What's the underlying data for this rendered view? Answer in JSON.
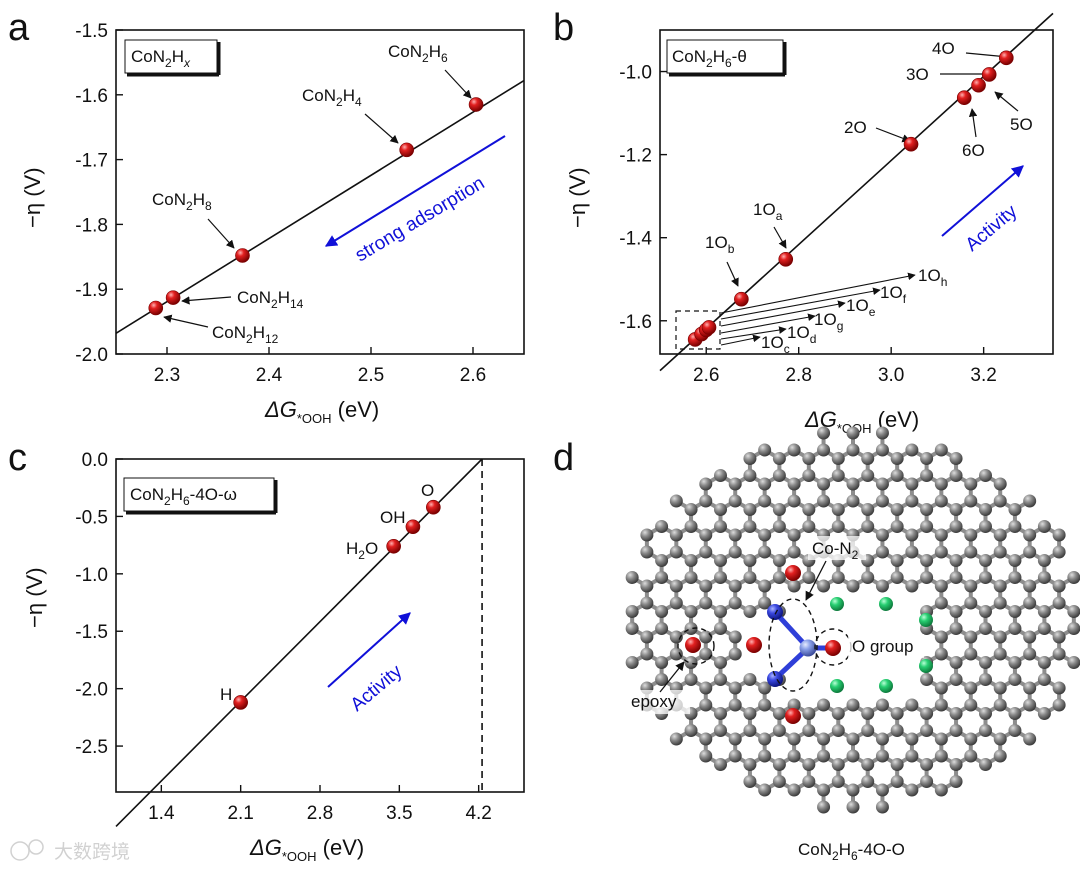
{
  "panel_letters": [
    "a",
    "b",
    "c",
    "d"
  ],
  "chart_data": [
    {
      "panel": "a",
      "type": "scatter",
      "legend": {
        "base": "CoN",
        "s1": "2",
        "mid": "H",
        "s2": "x"
      },
      "xlabel": {
        "pre": "ΔG",
        "sub": "*OOH",
        "post": " (eV)"
      },
      "ylabel": "−η (V)",
      "xlim": [
        2.25,
        2.65
      ],
      "ylim": [
        -2.0,
        -1.5
      ],
      "xticks": [
        "2.3",
        "2.4",
        "2.5",
        "2.6"
      ],
      "yticks": [
        "-1.5",
        "-1.6",
        "-1.7",
        "-1.8",
        "-1.9",
        "-2.0"
      ],
      "points": [
        {
          "x": 2.289,
          "y": -1.929,
          "label": {
            "base": "CoN",
            "s1": "2",
            "mid": "H",
            "s2": "12"
          }
        },
        {
          "x": 2.306,
          "y": -1.913,
          "label": {
            "base": "CoN",
            "s1": "2",
            "mid": "H",
            "s2": "14"
          }
        },
        {
          "x": 2.374,
          "y": -1.848,
          "label": {
            "base": "CoN",
            "s1": "2",
            "mid": "H",
            "s2": "8"
          }
        },
        {
          "x": 2.535,
          "y": -1.685,
          "label": {
            "base": "CoN",
            "s1": "2",
            "mid": "H",
            "s2": "4"
          }
        },
        {
          "x": 2.603,
          "y": -1.615,
          "label": {
            "base": "CoN",
            "s1": "2",
            "mid": "H",
            "s2": "6"
          }
        }
      ],
      "fit_line": [
        [
          2.25,
          -1.968
        ],
        [
          2.65,
          -1.578
        ]
      ],
      "annotation": "strong adsorption"
    },
    {
      "panel": "b",
      "type": "scatter",
      "legend": {
        "base": "CoN",
        "s1": "2",
        "mid": "H",
        "s2": "6",
        "post": "-θ"
      },
      "xlabel": {
        "pre": "ΔG",
        "sub": "*OOH",
        "post": " (eV)"
      },
      "ylabel": "−η (V)",
      "xlim": [
        2.5,
        3.35
      ],
      "ylim": [
        -1.68,
        -0.9
      ],
      "xticks": [
        "2.6",
        "2.8",
        "3.0",
        "3.2"
      ],
      "yticks": [
        "-1.0",
        "-1.2",
        "-1.4",
        "-1.6"
      ],
      "points": [
        {
          "x": 2.676,
          "y": -1.548,
          "label": "1Ob"
        },
        {
          "x": 2.772,
          "y": -1.452,
          "label": "1Oa"
        },
        {
          "x": 3.043,
          "y": -1.175,
          "label": "2O"
        },
        {
          "x": 3.158,
          "y": -1.063,
          "label": "6O"
        },
        {
          "x": 3.189,
          "y": -1.033,
          "label": "5O"
        },
        {
          "x": 3.212,
          "y": -1.007,
          "label": "3O"
        },
        {
          "x": 3.249,
          "y": -0.967,
          "label": "4O"
        },
        {
          "x": 2.576,
          "y": -1.645,
          "label": "cluster"
        },
        {
          "x": 2.59,
          "y": -1.632,
          "label": "cluster"
        },
        {
          "x": 2.6,
          "y": -1.622,
          "label": "cluster"
        },
        {
          "x": 2.606,
          "y": -1.616,
          "label": "cluster"
        }
      ],
      "pointer_labels": [
        {
          "base": "1O",
          "sub": "c"
        },
        {
          "base": "1O",
          "sub": "d"
        },
        {
          "base": "1O",
          "sub": "g"
        },
        {
          "base": "1O",
          "sub": "e"
        },
        {
          "base": "1O",
          "sub": "f"
        },
        {
          "base": "1O",
          "sub": "h"
        }
      ],
      "point_labels": {
        "a": {
          "base": "1O",
          "sub": "a"
        },
        "b": {
          "base": "1O",
          "sub": "b"
        },
        "two": "2O",
        "three": "3O",
        "four": "4O",
        "five": "5O",
        "six": "6O"
      },
      "fit_line": [
        [
          2.5,
          -1.72
        ],
        [
          3.35,
          -0.86
        ]
      ],
      "annotation": "Activity"
    },
    {
      "panel": "c",
      "type": "scatter",
      "legend": {
        "base": "CoN",
        "s1": "2",
        "mid": "H",
        "s2": "6",
        "post": "-4O-ω"
      },
      "xlabel": {
        "pre": "ΔG",
        "sub": "*OOH",
        "post": " (eV)"
      },
      "ylabel": "−η (V)",
      "xlim": [
        1.0,
        4.6
      ],
      "ylim": [
        -2.9,
        0.0
      ],
      "xticks": [
        "1.4",
        "2.1",
        "2.8",
        "3.5",
        "4.2"
      ],
      "yticks": [
        "0.0",
        "-0.5",
        "-1.0",
        "-1.5",
        "-2.0",
        "-2.5"
      ],
      "points": [
        {
          "x": 2.1,
          "y": -2.12,
          "label": "H"
        },
        {
          "x": 3.45,
          "y": -0.76,
          "label": "H2O"
        },
        {
          "x": 3.62,
          "y": -0.59,
          "label": "OH"
        },
        {
          "x": 3.8,
          "y": -0.42,
          "label": "O"
        }
      ],
      "labels": {
        "h": "H",
        "water": {
          "base": "H",
          "sub": "2",
          "post": "O"
        },
        "oh": "OH",
        "o": "O"
      },
      "fit_line": [
        [
          1.0,
          -3.2
        ],
        [
          4.23,
          0.0
        ]
      ],
      "vline_x": 4.23,
      "annotation": "Activity"
    }
  ],
  "panel_d": {
    "labels": {
      "con2": {
        "base": "Co-N",
        "sub": "2"
      },
      "ogroup": "O group",
      "epoxy": "epoxy"
    },
    "caption": {
      "base": "CoN",
      "s1": "2",
      "mid": "H",
      "s2": "6",
      "post": "-4O-O"
    }
  },
  "colors": {
    "atom_red": "#d81e1e",
    "atom_blue": "#2f3fd8",
    "atom_green": "#22c56a",
    "atom_gray": "#7a7a7a",
    "text_blue": "#1010d8"
  },
  "watermark": "大数跨境"
}
